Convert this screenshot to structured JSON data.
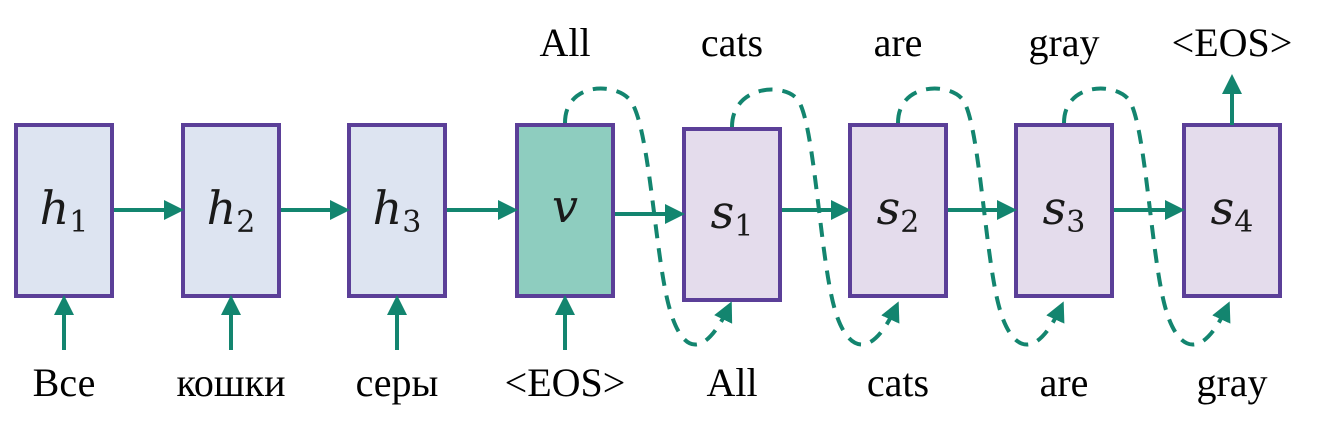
{
  "colors": {
    "box_stroke": "#5b3f98",
    "encoder_fill": "#dde4f1",
    "context_fill": "#8ecdbf",
    "decoder_fill": "#e4dcec",
    "arrow": "#13856f"
  },
  "encoder": {
    "cells": [
      {
        "var": "h",
        "sub": "1",
        "input": "Все"
      },
      {
        "var": "h",
        "sub": "2",
        "input": "кошки"
      },
      {
        "var": "h",
        "sub": "3",
        "input": "серы"
      }
    ]
  },
  "context": {
    "var": "v",
    "input": "<EOS>",
    "output": "All"
  },
  "decoder": {
    "cells": [
      {
        "var": "s",
        "sub": "1",
        "input": "All",
        "output": "cats"
      },
      {
        "var": "s",
        "sub": "2",
        "input": "cats",
        "output": "are"
      },
      {
        "var": "s",
        "sub": "3",
        "input": "are",
        "output": "gray"
      },
      {
        "var": "s",
        "sub": "4",
        "input": "gray",
        "output": "<EOS>"
      }
    ]
  }
}
